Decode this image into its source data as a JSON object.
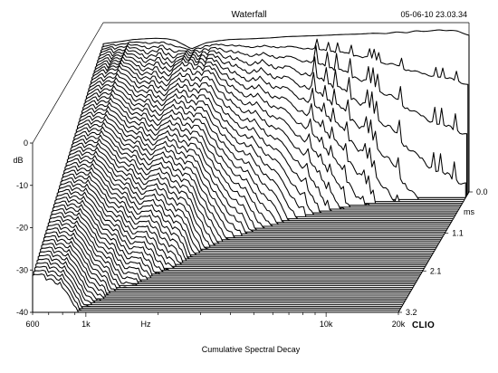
{
  "chart_data": {
    "type": "waterfall",
    "title": "Waterfall",
    "timestamp": "05-06-10 23.03.34",
    "caption": "Cumulative Spectral Decay",
    "brand": "CLIO",
    "xlabel": "Hz",
    "ylabel": "dB",
    "zlabel": "ms",
    "x_ticks": [
      "600",
      "1k",
      "10k",
      "20k"
    ],
    "x_tick_values": [
      600,
      1000,
      10000,
      20000
    ],
    "xlim": [
      600,
      20000
    ],
    "x_scale": "log",
    "y_ticks": [
      "0",
      "-10",
      "-20",
      "-30",
      "-40"
    ],
    "y_tick_values": [
      0,
      -10,
      -20,
      -30,
      -40
    ],
    "ylim": [
      -40,
      0
    ],
    "z_ticks": [
      "0.0",
      "1.1",
      "2.1",
      "3.2"
    ],
    "z_tick_values": [
      0.0,
      1.1,
      2.1,
      3.2
    ],
    "zlim": [
      0,
      3.2
    ],
    "slice_count": 64,
    "initial_response": {
      "freq": [
        600,
        700,
        800,
        900,
        1000,
        1100,
        1200,
        1400,
        1600,
        1800,
        2000,
        2500,
        3000,
        3500,
        4000,
        5000,
        6000,
        7000,
        8000,
        9000,
        10000,
        11000,
        12000,
        13000,
        14000,
        15000,
        16000,
        17000,
        18000,
        19000,
        20000
      ],
      "db": [
        -5.0,
        -4.5,
        -4.0,
        -3.8,
        -3.7,
        -3.8,
        -4.2,
        -6.2,
        -4.8,
        -4.3,
        -4.0,
        -3.8,
        -3.6,
        -3.3,
        -3.2,
        -3.0,
        -2.8,
        -2.7,
        -2.5,
        -2.6,
        -2.2,
        -2.4,
        -1.9,
        -2.1,
        -1.9,
        -1.7,
        -1.9,
        -1.8,
        -2.0,
        -2.6,
        -3.0
      ]
    }
  }
}
